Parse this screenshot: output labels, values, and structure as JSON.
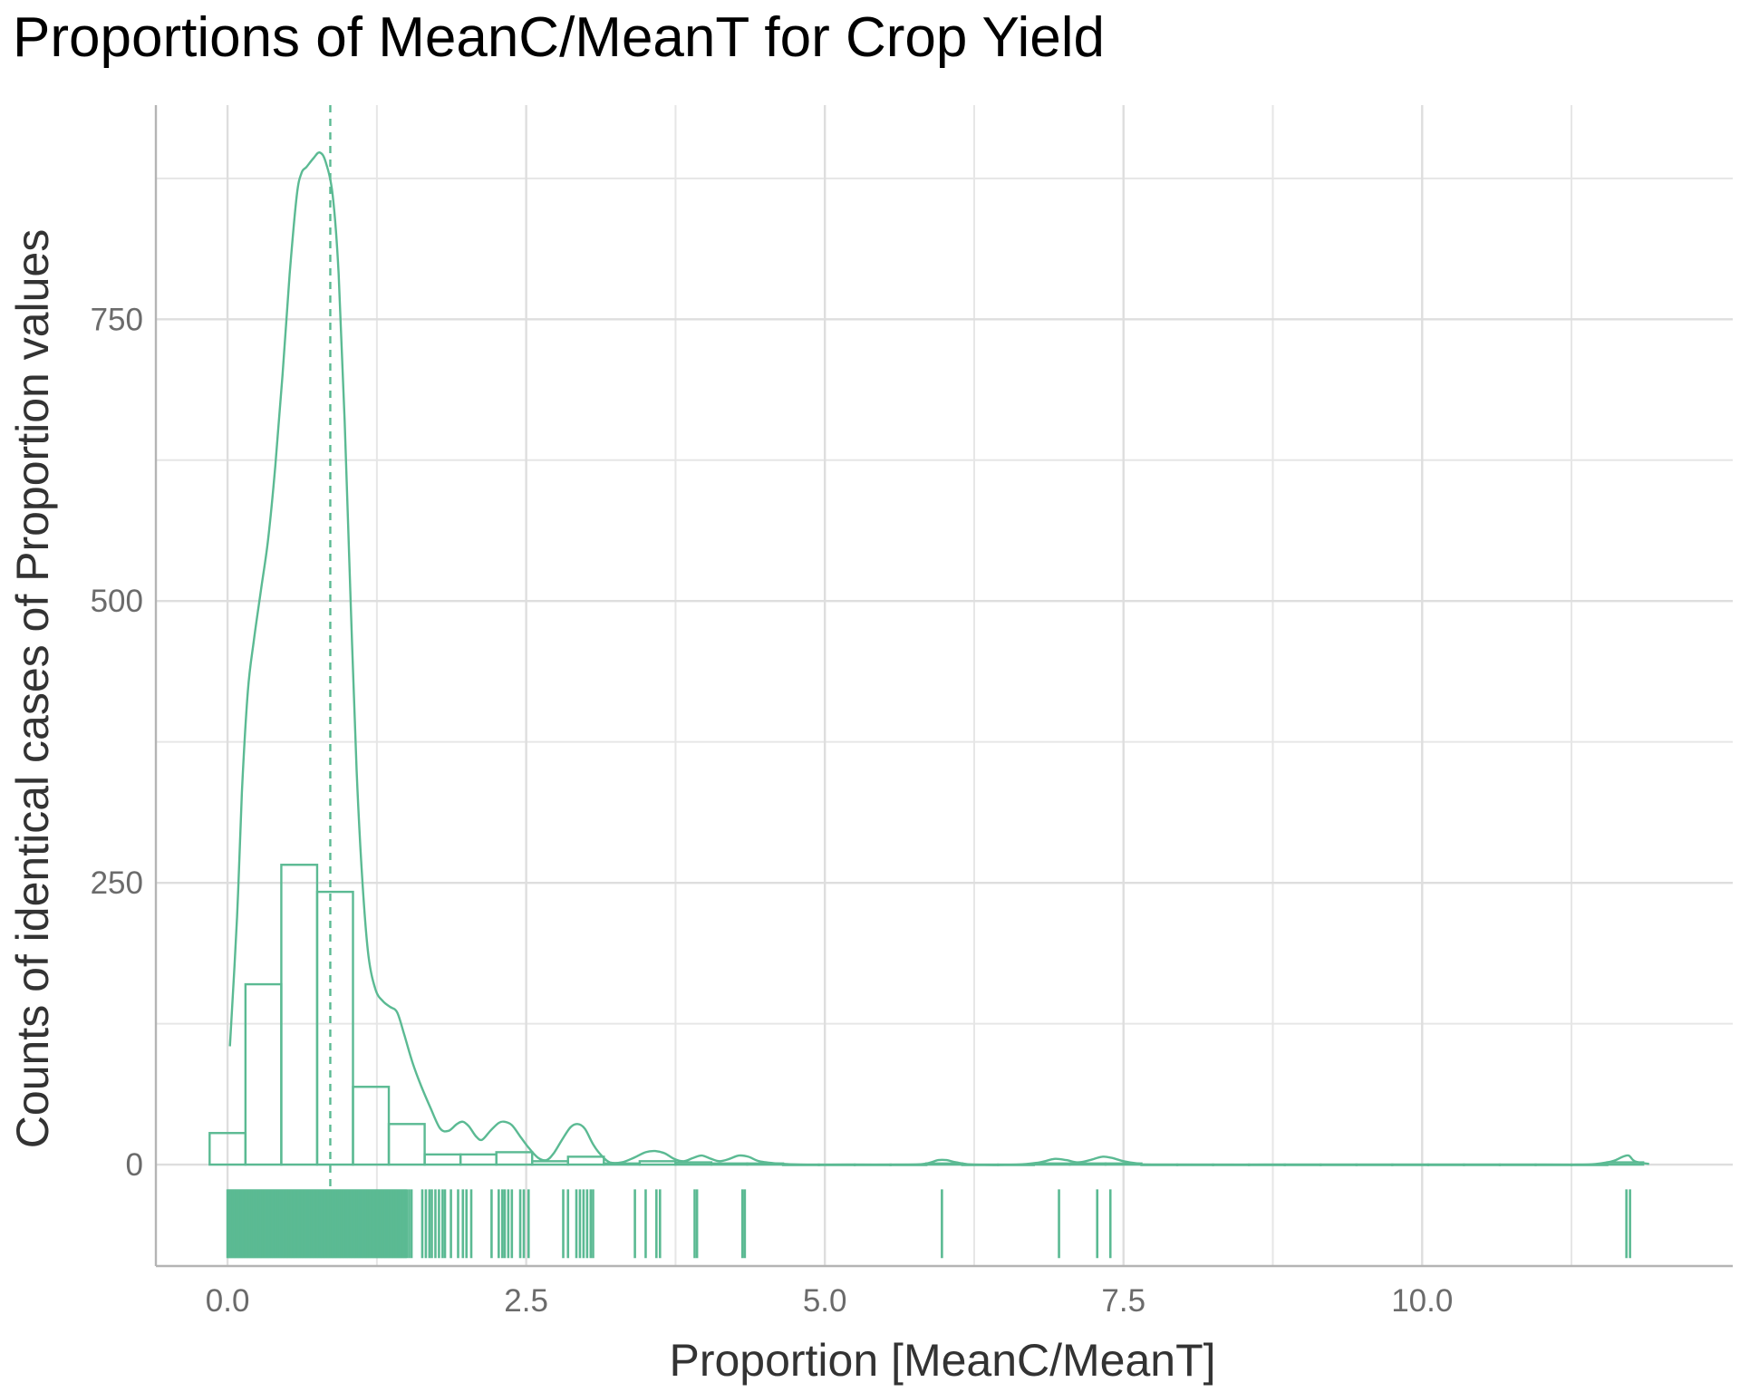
{
  "colors": {
    "accent": "#5bba93",
    "grid": "#dedede",
    "axis": "#b4b4b4",
    "title": "#000000",
    "axis_title": "#333333",
    "tick": "#6b6b6b"
  },
  "chart_data": {
    "type": "histogram",
    "title": "Proportions of MeanC/MeanT for Crop Yield",
    "xlabel": "Proportion [MeanC/MeanT]",
    "ylabel": "Counts of identical cases of Proportion values",
    "xlim": [
      -0.6,
      12.6
    ],
    "ylim": [
      -90,
      940
    ],
    "x_ticks": [
      0,
      2.5,
      5,
      7.5,
      10
    ],
    "x_tick_labels": [
      "0.0",
      "2.5",
      "5.0",
      "7.5",
      "10.0"
    ],
    "y_ticks": [
      0,
      250,
      500,
      750
    ],
    "y_tick_labels": [
      "0",
      "250",
      "500",
      "750"
    ],
    "mean_line_x": 0.86,
    "bins": [
      {
        "x0": -0.15,
        "x1": 0.15,
        "count": 28
      },
      {
        "x0": 0.15,
        "x1": 0.45,
        "count": 160
      },
      {
        "x0": 0.45,
        "x1": 0.75,
        "count": 266
      },
      {
        "x0": 0.75,
        "x1": 1.05,
        "count": 242
      },
      {
        "x0": 1.05,
        "x1": 1.35,
        "count": 69
      },
      {
        "x0": 1.35,
        "x1": 1.65,
        "count": 36
      },
      {
        "x0": 1.65,
        "x1": 1.95,
        "count": 9
      },
      {
        "x0": 1.95,
        "x1": 2.25,
        "count": 9
      },
      {
        "x0": 2.25,
        "x1": 2.55,
        "count": 11
      },
      {
        "x0": 2.55,
        "x1": 2.85,
        "count": 3
      },
      {
        "x0": 2.85,
        "x1": 3.15,
        "count": 7
      },
      {
        "x0": 3.15,
        "x1": 3.45,
        "count": 1
      },
      {
        "x0": 3.45,
        "x1": 3.75,
        "count": 3
      },
      {
        "x0": 3.75,
        "x1": 4.05,
        "count": 2
      },
      {
        "x0": 4.05,
        "x1": 4.35,
        "count": 1
      },
      {
        "x0": 4.35,
        "x1": 4.65,
        "count": 1
      },
      {
        "x0": 4.65,
        "x1": 4.95,
        "count": 0
      },
      {
        "x0": 4.95,
        "x1": 5.25,
        "count": 0
      },
      {
        "x0": 5.25,
        "x1": 5.55,
        "count": 0
      },
      {
        "x0": 5.55,
        "x1": 5.85,
        "count": 0
      },
      {
        "x0": 5.85,
        "x1": 6.15,
        "count": 1
      },
      {
        "x0": 6.15,
        "x1": 6.45,
        "count": 0
      },
      {
        "x0": 6.45,
        "x1": 6.75,
        "count": 0
      },
      {
        "x0": 6.75,
        "x1": 7.05,
        "count": 1
      },
      {
        "x0": 7.05,
        "x1": 7.35,
        "count": 1
      },
      {
        "x0": 7.35,
        "x1": 7.65,
        "count": 1
      },
      {
        "x0": 7.65,
        "x1": 7.95,
        "count": 0
      },
      {
        "x0": 7.95,
        "x1": 8.25,
        "count": 0
      },
      {
        "x0": 8.25,
        "x1": 8.55,
        "count": 0
      },
      {
        "x0": 8.55,
        "x1": 8.85,
        "count": 0
      },
      {
        "x0": 8.85,
        "x1": 9.15,
        "count": 0
      },
      {
        "x0": 9.15,
        "x1": 9.45,
        "count": 0
      },
      {
        "x0": 9.45,
        "x1": 9.75,
        "count": 0
      },
      {
        "x0": 9.75,
        "x1": 10.05,
        "count": 0
      },
      {
        "x0": 10.05,
        "x1": 10.35,
        "count": 0
      },
      {
        "x0": 10.35,
        "x1": 10.65,
        "count": 0
      },
      {
        "x0": 10.65,
        "x1": 10.95,
        "count": 0
      },
      {
        "x0": 10.95,
        "x1": 11.25,
        "count": 0
      },
      {
        "x0": 11.25,
        "x1": 11.55,
        "count": 0
      },
      {
        "x0": 11.55,
        "x1": 11.85,
        "count": 2
      }
    ],
    "density_curve": [
      [
        0.02,
        105
      ],
      [
        0.08,
        220
      ],
      [
        0.12,
        330
      ],
      [
        0.17,
        420
      ],
      [
        0.22,
        465
      ],
      [
        0.28,
        510
      ],
      [
        0.34,
        555
      ],
      [
        0.4,
        620
      ],
      [
        0.46,
        700
      ],
      [
        0.52,
        790
      ],
      [
        0.58,
        860
      ],
      [
        0.62,
        880
      ],
      [
        0.66,
        885
      ],
      [
        0.72,
        893
      ],
      [
        0.77,
        898
      ],
      [
        0.82,
        890
      ],
      [
        0.88,
        860
      ],
      [
        0.93,
        790
      ],
      [
        0.98,
        660
      ],
      [
        1.03,
        500
      ],
      [
        1.08,
        350
      ],
      [
        1.13,
        250
      ],
      [
        1.18,
        185
      ],
      [
        1.24,
        155
      ],
      [
        1.3,
        145
      ],
      [
        1.36,
        140
      ],
      [
        1.42,
        135
      ],
      [
        1.48,
        115
      ],
      [
        1.55,
        90
      ],
      [
        1.62,
        70
      ],
      [
        1.7,
        50
      ],
      [
        1.78,
        32
      ],
      [
        1.85,
        30
      ],
      [
        1.92,
        36
      ],
      [
        1.97,
        38
      ],
      [
        2.02,
        34
      ],
      [
        2.08,
        25
      ],
      [
        2.13,
        22
      ],
      [
        2.2,
        30
      ],
      [
        2.27,
        37
      ],
      [
        2.32,
        38
      ],
      [
        2.38,
        35
      ],
      [
        2.45,
        25
      ],
      [
        2.52,
        15
      ],
      [
        2.6,
        6
      ],
      [
        2.67,
        4
      ],
      [
        2.73,
        10
      ],
      [
        2.8,
        22
      ],
      [
        2.87,
        33
      ],
      [
        2.93,
        36
      ],
      [
        2.99,
        32
      ],
      [
        3.06,
        18
      ],
      [
        3.13,
        8
      ],
      [
        3.2,
        2
      ],
      [
        3.3,
        2
      ],
      [
        3.4,
        6
      ],
      [
        3.5,
        11
      ],
      [
        3.58,
        12
      ],
      [
        3.66,
        10
      ],
      [
        3.74,
        5
      ],
      [
        3.82,
        3
      ],
      [
        3.9,
        6
      ],
      [
        3.97,
        8
      ],
      [
        4.05,
        5
      ],
      [
        4.12,
        3
      ],
      [
        4.2,
        5
      ],
      [
        4.28,
        8
      ],
      [
        4.36,
        7
      ],
      [
        4.45,
        3
      ],
      [
        4.6,
        1
      ],
      [
        4.8,
        0
      ],
      [
        5.2,
        0
      ],
      [
        5.7,
        0
      ],
      [
        5.85,
        1
      ],
      [
        5.95,
        4
      ],
      [
        6.02,
        4
      ],
      [
        6.1,
        2
      ],
      [
        6.25,
        0
      ],
      [
        6.6,
        0
      ],
      [
        6.8,
        2
      ],
      [
        6.92,
        5
      ],
      [
        7.02,
        4
      ],
      [
        7.12,
        2
      ],
      [
        7.22,
        4
      ],
      [
        7.32,
        7
      ],
      [
        7.4,
        6
      ],
      [
        7.5,
        3
      ],
      [
        7.62,
        1
      ],
      [
        7.8,
        0
      ],
      [
        9.0,
        0
      ],
      [
        10.0,
        0
      ],
      [
        11.0,
        0
      ],
      [
        11.3,
        0
      ],
      [
        11.45,
        0.5
      ],
      [
        11.55,
        2
      ],
      [
        11.62,
        4
      ],
      [
        11.68,
        7
      ],
      [
        11.73,
        8
      ],
      [
        11.78,
        3
      ],
      [
        11.9,
        0.5
      ]
    ],
    "rug_values": [
      0.0,
      0.01,
      0.02,
      0.03,
      0.04,
      0.05,
      0.06,
      0.07,
      0.08,
      0.09,
      0.1,
      0.11,
      0.12,
      0.13,
      0.14,
      0.15,
      0.16,
      0.17,
      0.18,
      0.19,
      0.2,
      0.21,
      0.22,
      0.23,
      0.24,
      0.25,
      0.26,
      0.27,
      0.28,
      0.29,
      0.3,
      0.31,
      0.32,
      0.33,
      0.34,
      0.35,
      0.36,
      0.37,
      0.38,
      0.39,
      0.4,
      0.41,
      0.42,
      0.43,
      0.44,
      0.45,
      0.46,
      0.47,
      0.48,
      0.49,
      0.5,
      0.51,
      0.52,
      0.53,
      0.54,
      0.55,
      0.56,
      0.57,
      0.58,
      0.59,
      0.6,
      0.61,
      0.62,
      0.63,
      0.64,
      0.65,
      0.66,
      0.67,
      0.68,
      0.69,
      0.7,
      0.71,
      0.72,
      0.73,
      0.74,
      0.75,
      0.76,
      0.77,
      0.78,
      0.79,
      0.8,
      0.81,
      0.82,
      0.83,
      0.84,
      0.85,
      0.86,
      0.87,
      0.88,
      0.89,
      0.9,
      0.91,
      0.92,
      0.93,
      0.94,
      0.95,
      0.96,
      0.97,
      0.98,
      0.99,
      1.0,
      1.01,
      1.02,
      1.03,
      1.04,
      1.05,
      1.06,
      1.07,
      1.08,
      1.09,
      1.1,
      1.11,
      1.12,
      1.13,
      1.14,
      1.15,
      1.16,
      1.17,
      1.18,
      1.19,
      1.2,
      1.21,
      1.22,
      1.23,
      1.24,
      1.25,
      1.26,
      1.27,
      1.28,
      1.29,
      1.3,
      1.31,
      1.32,
      1.33,
      1.34,
      1.35,
      1.36,
      1.37,
      1.38,
      1.39,
      1.4,
      1.41,
      1.42,
      1.43,
      1.44,
      1.45,
      1.46,
      1.47,
      1.48,
      1.49,
      1.5,
      1.52,
      1.54,
      1.63,
      1.66,
      1.69,
      1.71,
      1.74,
      1.77,
      1.8,
      1.82,
      1.87,
      1.93,
      1.97,
      2.0,
      2.04,
      2.21,
      2.27,
      2.3,
      2.32,
      2.35,
      2.38,
      2.45,
      2.48,
      2.52,
      2.81,
      2.85,
      2.92,
      2.95,
      2.98,
      3.01,
      3.04,
      3.06,
      3.41,
      3.5,
      3.59,
      3.62,
      3.91,
      3.93,
      4.31,
      4.33,
      5.98,
      6.96,
      7.28,
      7.39,
      11.71,
      11.74
    ]
  }
}
